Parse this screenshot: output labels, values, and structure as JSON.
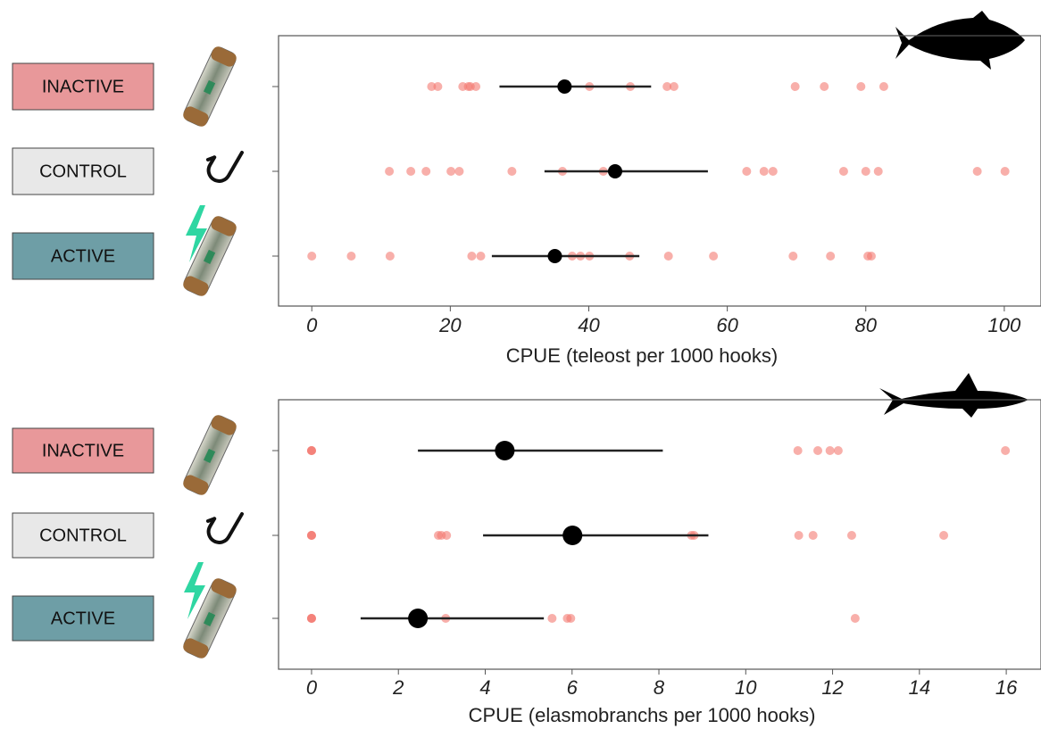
{
  "chart_data": [
    {
      "type": "dot",
      "xlabel": "CPUE (teleost per 1000 hooks)",
      "xlim": [
        -4.8,
        105.3
      ],
      "xticks": [
        0,
        20,
        40,
        60,
        80,
        100
      ],
      "point_color": "#f47a72",
      "mean_color": "#000000",
      "series": [
        {
          "name": "INACTIVE",
          "color": "#e8989a",
          "values": [
            17.3,
            18.2,
            21.8,
            22.6,
            22.9,
            23.7,
            40.1,
            46,
            51.3,
            52.3,
            69.8,
            74,
            79.3,
            82.6
          ],
          "mean": 36.5,
          "ci": [
            27.1,
            49.0
          ]
        },
        {
          "name": "CONTROL",
          "color": "#e8e8e8",
          "values": [
            11.2,
            14.3,
            16.5,
            20.1,
            21.3,
            28.9,
            36.2,
            42.1,
            62.8,
            65.3,
            66.6,
            76.8,
            80.0,
            81.8,
            96.1,
            100.1
          ],
          "mean": 43.8,
          "ci": [
            33.6,
            57.2
          ]
        },
        {
          "name": "ACTIVE",
          "color": "#6e9ea6",
          "values": [
            0,
            5.7,
            11.3,
            23.1,
            24.4,
            37.6,
            38.8,
            40.1,
            45.9,
            51.5,
            58.0,
            69.5,
            74.9,
            80.3,
            80.8
          ],
          "mean": 35.1,
          "ci": [
            26.0,
            47.3
          ]
        }
      ]
    },
    {
      "type": "dot",
      "xlabel": "CPUE (elasmobranchs per 1000 hooks)",
      "xlim": [
        -0.76,
        16.8
      ],
      "xticks": [
        0,
        2,
        4,
        6,
        8,
        10,
        12,
        14,
        16
      ],
      "point_color": "#f47a72",
      "mean_color": "#000000",
      "series": [
        {
          "name": "INACTIVE",
          "color": "#e8989a",
          "values": [
            0,
            0,
            0,
            11.2,
            11.66,
            11.94,
            12.13,
            15.98
          ],
          "mean": 4.45,
          "ci": [
            2.45,
            8.09
          ]
        },
        {
          "name": "CONTROL",
          "color": "#e8e8e8",
          "values": [
            0,
            0,
            0,
            2.92,
            2.99,
            3.11,
            8.75,
            8.81,
            11.22,
            11.55,
            12.44,
            14.56
          ],
          "mean": 6.01,
          "ci": [
            3.95,
            9.14
          ]
        },
        {
          "name": "ACTIVE",
          "color": "#6e9ea6",
          "values": [
            0,
            0,
            0,
            3.09,
            5.54,
            5.89,
            5.97,
            12.52
          ],
          "mean": 2.45,
          "ci": [
            1.13,
            5.35
          ]
        }
      ]
    }
  ]
}
